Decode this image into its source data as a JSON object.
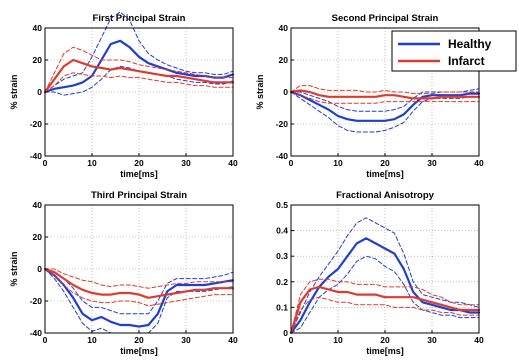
{
  "colors": {
    "healthy": "#1f3fcf",
    "infarct": "#dd3b2b",
    "grid": "#9a9a9a"
  },
  "legend": {
    "placement": "top-right of second panel",
    "entries": [
      "Healthy",
      "Infarct"
    ]
  },
  "chart_data": [
    {
      "type": "line",
      "title": "First Principal Strain",
      "xlabel": "time[ms]",
      "ylabel": "% strain",
      "xlim": [
        0,
        40
      ],
      "ylim": [
        -40,
        40
      ],
      "xticks": [
        0,
        10,
        20,
        30,
        40
      ],
      "yticks": [
        -40,
        -20,
        0,
        20,
        40
      ],
      "grid": "dotted",
      "x": [
        0,
        2,
        4,
        6,
        8,
        10,
        12,
        14,
        16,
        18,
        20,
        22,
        24,
        26,
        28,
        30,
        32,
        34,
        36,
        38,
        40
      ],
      "series": [
        {
          "name": "Healthy",
          "role": "mean",
          "values": [
            0,
            2,
            3,
            4,
            6,
            10,
            20,
            30,
            32,
            28,
            22,
            18,
            16,
            14,
            12,
            11,
            10,
            10,
            9,
            9,
            11
          ]
        },
        {
          "name": "Healthy",
          "role": "upper",
          "values": [
            0,
            4,
            8,
            10,
            12,
            22,
            34,
            46,
            50,
            45,
            32,
            24,
            20,
            17,
            15,
            13,
            12,
            12,
            11,
            11,
            13
          ]
        },
        {
          "name": "Healthy",
          "role": "lower",
          "values": [
            0,
            0,
            -2,
            -1,
            0,
            3,
            8,
            14,
            16,
            15,
            13,
            12,
            11,
            10,
            8,
            7,
            6,
            6,
            5,
            5,
            7
          ]
        },
        {
          "name": "Infarct",
          "role": "mean",
          "values": [
            0,
            8,
            16,
            20,
            18,
            16,
            15,
            14,
            15,
            14,
            13,
            12,
            11,
            10,
            10,
            9,
            8,
            7,
            6,
            6,
            6
          ]
        },
        {
          "name": "Infarct",
          "role": "upper",
          "values": [
            0,
            12,
            24,
            28,
            26,
            23,
            20,
            20,
            20,
            19,
            17,
            16,
            15,
            14,
            13,
            12,
            11,
            10,
            9,
            9,
            9
          ]
        },
        {
          "name": "Infarct",
          "role": "lower",
          "values": [
            0,
            4,
            10,
            12,
            11,
            10,
            10,
            9,
            10,
            9,
            9,
            8,
            7,
            6,
            6,
            5,
            4,
            4,
            3,
            3,
            3
          ]
        }
      ]
    },
    {
      "type": "line",
      "title": "Second Principal Strain",
      "xlabel": "time[ms]",
      "ylabel": "% strain",
      "xlim": [
        0,
        40
      ],
      "ylim": [
        -40,
        40
      ],
      "xticks": [
        0,
        10,
        20,
        30,
        40
      ],
      "yticks": [
        -40,
        -20,
        0,
        20,
        40
      ],
      "grid": "dotted",
      "x": [
        0,
        2,
        4,
        6,
        8,
        10,
        12,
        14,
        16,
        18,
        20,
        22,
        24,
        26,
        28,
        30,
        32,
        34,
        36,
        38,
        40
      ],
      "series": [
        {
          "name": "Healthy",
          "role": "mean",
          "values": [
            0,
            -2,
            -5,
            -8,
            -11,
            -15,
            -17,
            -18,
            -18,
            -18,
            -18,
            -17,
            -14,
            -8,
            -3,
            -2,
            -2,
            -2,
            -2,
            -1,
            -1
          ]
        },
        {
          "name": "Healthy",
          "role": "upper",
          "values": [
            0,
            0,
            -2,
            -4,
            -6,
            -9,
            -11,
            -12,
            -12,
            -12,
            -12,
            -11,
            -9,
            -4,
            0,
            0,
            0,
            0,
            0,
            1,
            2
          ]
        },
        {
          "name": "Healthy",
          "role": "lower",
          "values": [
            0,
            -4,
            -8,
            -12,
            -16,
            -21,
            -24,
            -25,
            -25,
            -25,
            -24,
            -22,
            -19,
            -12,
            -6,
            -4,
            -4,
            -4,
            -4,
            -3,
            -3
          ]
        },
        {
          "name": "Infarct",
          "role": "mean",
          "values": [
            0,
            1,
            0,
            -2,
            -3,
            -3,
            -3,
            -3,
            -3,
            -3,
            -2,
            -2,
            -3,
            -4,
            -4,
            -4,
            -3,
            -3,
            -3,
            -3,
            -3
          ]
        },
        {
          "name": "Infarct",
          "role": "upper",
          "values": [
            0,
            4,
            4,
            2,
            1,
            1,
            1,
            1,
            0,
            0,
            1,
            0,
            0,
            -1,
            -1,
            -1,
            0,
            0,
            0,
            0,
            0
          ]
        },
        {
          "name": "Infarct",
          "role": "lower",
          "values": [
            0,
            -2,
            -4,
            -6,
            -7,
            -7,
            -7,
            -7,
            -7,
            -7,
            -6,
            -6,
            -6,
            -6,
            -6,
            -6,
            -6,
            -6,
            -6,
            -6,
            -6
          ]
        }
      ]
    },
    {
      "type": "line",
      "title": "Third Principal Strain",
      "xlabel": "time[ms]",
      "ylabel": "% strain",
      "xlim": [
        0,
        40
      ],
      "ylim": [
        -40,
        40
      ],
      "xticks": [
        0,
        10,
        20,
        30,
        40
      ],
      "yticks": [
        -40,
        -20,
        0,
        20,
        40
      ],
      "grid": "dotted",
      "x": [
        0,
        2,
        4,
        6,
        8,
        10,
        12,
        14,
        16,
        18,
        20,
        22,
        24,
        26,
        28,
        30,
        32,
        34,
        36,
        38,
        40
      ],
      "series": [
        {
          "name": "Healthy",
          "role": "mean",
          "values": [
            0,
            -4,
            -10,
            -18,
            -28,
            -32,
            -30,
            -33,
            -35,
            -35,
            -36,
            -35,
            -28,
            -14,
            -10,
            -10,
            -10,
            -10,
            -9,
            -8,
            -7
          ]
        },
        {
          "name": "Healthy",
          "role": "upper",
          "values": [
            0,
            -2,
            -6,
            -12,
            -20,
            -24,
            -24,
            -26,
            -28,
            -28,
            -28,
            -28,
            -20,
            -9,
            -6,
            -6,
            -6,
            -6,
            -5,
            -4,
            -2
          ]
        },
        {
          "name": "Healthy",
          "role": "lower",
          "values": [
            0,
            -6,
            -14,
            -24,
            -34,
            -39,
            -37,
            -40,
            -40,
            -40,
            -40,
            -40,
            -34,
            -18,
            -14,
            -14,
            -14,
            -14,
            -13,
            -12,
            -11
          ]
        },
        {
          "name": "Infarct",
          "role": "mean",
          "values": [
            0,
            -2,
            -6,
            -10,
            -13,
            -15,
            -16,
            -16,
            -15,
            -15,
            -16,
            -18,
            -17,
            -16,
            -15,
            -14,
            -13,
            -13,
            -12,
            -12,
            -12
          ]
        },
        {
          "name": "Infarct",
          "role": "upper",
          "values": [
            0,
            0,
            -3,
            -5,
            -7,
            -8,
            -10,
            -11,
            -10,
            -10,
            -11,
            -12,
            -11,
            -10,
            -9,
            -9,
            -8,
            -8,
            -8,
            -8,
            -8
          ]
        },
        {
          "name": "Infarct",
          "role": "lower",
          "values": [
            0,
            -4,
            -10,
            -15,
            -18,
            -20,
            -21,
            -21,
            -20,
            -20,
            -21,
            -23,
            -22,
            -21,
            -20,
            -19,
            -18,
            -17,
            -16,
            -16,
            -16
          ]
        }
      ]
    },
    {
      "type": "line",
      "title": "Fractional Anisotropy",
      "xlabel": "time[ms]",
      "ylabel": "",
      "xlim": [
        0,
        40
      ],
      "ylim": [
        0,
        0.5
      ],
      "xticks": [
        0,
        10,
        20,
        30,
        40
      ],
      "yticks": [
        0,
        0.1,
        0.2,
        0.3,
        0.4,
        0.5
      ],
      "grid": "dotted",
      "x": [
        0,
        2,
        4,
        6,
        8,
        10,
        12,
        14,
        16,
        18,
        20,
        22,
        24,
        26,
        28,
        30,
        32,
        34,
        36,
        38,
        40
      ],
      "series": [
        {
          "name": "Healthy",
          "role": "mean",
          "values": [
            0,
            0.05,
            0.12,
            0.18,
            0.22,
            0.25,
            0.3,
            0.35,
            0.37,
            0.35,
            0.33,
            0.31,
            0.25,
            0.16,
            0.12,
            0.11,
            0.1,
            0.09,
            0.09,
            0.08,
            0.08
          ]
        },
        {
          "name": "Healthy",
          "role": "upper",
          "values": [
            0,
            0.08,
            0.16,
            0.22,
            0.27,
            0.32,
            0.38,
            0.43,
            0.45,
            0.43,
            0.41,
            0.39,
            0.31,
            0.2,
            0.15,
            0.14,
            0.13,
            0.12,
            0.12,
            0.11,
            0.1
          ]
        },
        {
          "name": "Healthy",
          "role": "lower",
          "values": [
            0,
            0.02,
            0.08,
            0.14,
            0.17,
            0.19,
            0.23,
            0.28,
            0.3,
            0.29,
            0.26,
            0.24,
            0.19,
            0.12,
            0.09,
            0.08,
            0.07,
            0.07,
            0.06,
            0.06,
            0.06
          ]
        },
        {
          "name": "Infarct",
          "role": "mean",
          "values": [
            0,
            0.12,
            0.17,
            0.18,
            0.17,
            0.16,
            0.16,
            0.15,
            0.15,
            0.15,
            0.14,
            0.14,
            0.14,
            0.14,
            0.13,
            0.12,
            0.11,
            0.1,
            0.09,
            0.09,
            0.09
          ]
        },
        {
          "name": "Infarct",
          "role": "upper",
          "values": [
            0,
            0.15,
            0.2,
            0.21,
            0.21,
            0.2,
            0.2,
            0.19,
            0.19,
            0.19,
            0.18,
            0.18,
            0.18,
            0.18,
            0.17,
            0.15,
            0.14,
            0.12,
            0.11,
            0.11,
            0.11
          ]
        },
        {
          "name": "Infarct",
          "role": "lower",
          "values": [
            0,
            0.09,
            0.13,
            0.14,
            0.13,
            0.12,
            0.12,
            0.11,
            0.11,
            0.11,
            0.11,
            0.1,
            0.1,
            0.1,
            0.09,
            0.09,
            0.08,
            0.08,
            0.07,
            0.07,
            0.07
          ]
        }
      ]
    }
  ]
}
